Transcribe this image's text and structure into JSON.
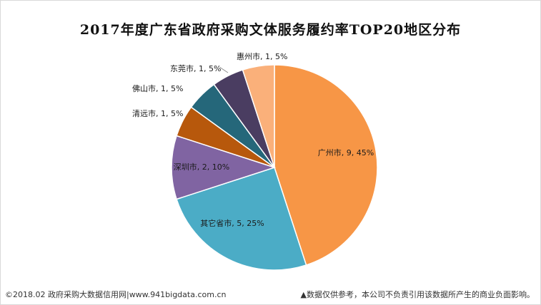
{
  "chart_data": {
    "type": "pie",
    "title": "2017年度广东省政府采购文体服务履约率TOP20地区分布",
    "slices": [
      {
        "name": "广州市",
        "value": 9,
        "percent": 45,
        "color": "#F79646",
        "label": "广州市, 9, 45%"
      },
      {
        "name": "其它省市",
        "value": 5,
        "percent": 25,
        "color": "#4BACC6",
        "label": "其它省市, 5, 25%"
      },
      {
        "name": "深圳市",
        "value": 2,
        "percent": 10,
        "color": "#8064A2",
        "label": "深圳市, 2, 10%"
      },
      {
        "name": "清远市",
        "value": 1,
        "percent": 5,
        "color": "#B7580C",
        "label": "清远市, 1, 5%"
      },
      {
        "name": "佛山市",
        "value": 1,
        "percent": 5,
        "color": "#25677A",
        "label": "佛山市, 1, 5%"
      },
      {
        "name": "东莞市",
        "value": 1,
        "percent": 5,
        "color": "#4A3D61",
        "label": "东莞市, 1, 5%"
      },
      {
        "name": "惠州市",
        "value": 1,
        "percent": 5,
        "color": "#FAB07A",
        "label": "惠州市, 1, 5%"
      }
    ]
  },
  "footer": {
    "source": "©2018.02 政府采购大数据信用网|www.941bigdata.com.cn",
    "disclaimer": "▲数据仅供参考，本公司不负责引用该数据所产生的商业负面影响。"
  }
}
